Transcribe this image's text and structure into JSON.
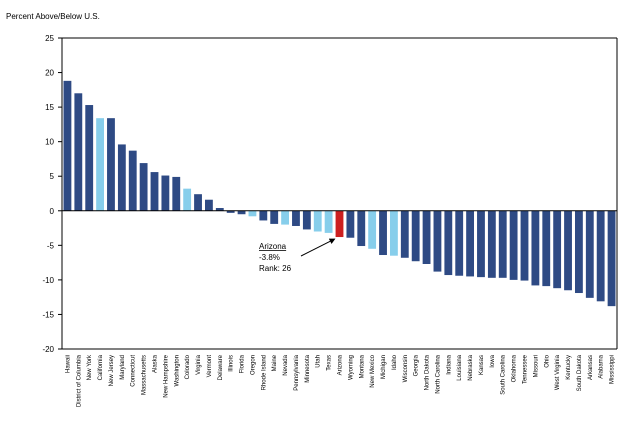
{
  "chart_data": {
    "type": "bar",
    "title": "",
    "ylabel": "Percent Above/Below U.S.",
    "xlabel": "",
    "ylim": [
      -20,
      25
    ],
    "yticks": [
      25,
      20,
      15,
      10,
      5,
      0,
      -5,
      -10,
      -15,
      -20
    ],
    "grid": false,
    "colors": {
      "default": "#2e4a84",
      "highlight": "#cc1f1f",
      "comparison": "#87ceeb"
    },
    "categories": [
      "Hawaii",
      "District of Columbia",
      "New York",
      "California",
      "New Jersey",
      "Maryland",
      "Connecticut",
      "Massachusetts",
      "Alaska",
      "New Hampshire",
      "Washington",
      "Colorado",
      "Virginia",
      "Vermont",
      "Delaware",
      "Illinois",
      "Florida",
      "Oregon",
      "Rhode Island",
      "Maine",
      "Nevada",
      "Pennsylvania",
      "Minnesota",
      "Utah",
      "Texas",
      "Arizona",
      "Wyoming",
      "Montana",
      "New Mexico",
      "Michigan",
      "Idaho",
      "Wisconsin",
      "Georgia",
      "North Dakota",
      "North Carolina",
      "Indiana",
      "Louisiana",
      "Nebraska",
      "Kansas",
      "Iowa",
      "South Carolina",
      "Oklahoma",
      "Tennessee",
      "Missouri",
      "Ohio",
      "West Virginia",
      "Kentucky",
      "South Dakota",
      "Arkansas",
      "Alabama",
      "Mississippi"
    ],
    "values": [
      18.8,
      17.0,
      15.3,
      13.4,
      13.4,
      9.6,
      8.7,
      6.9,
      5.6,
      5.1,
      4.9,
      3.2,
      2.4,
      1.6,
      0.4,
      -0.3,
      -0.5,
      -0.8,
      -1.4,
      -1.9,
      -2.0,
      -2.2,
      -2.7,
      -3.0,
      -3.2,
      -3.8,
      -3.9,
      -5.1,
      -5.5,
      -6.4,
      -6.5,
      -6.8,
      -7.3,
      -7.7,
      -8.8,
      -9.3,
      -9.4,
      -9.5,
      -9.6,
      -9.7,
      -9.7,
      -10.0,
      -10.1,
      -10.8,
      -10.9,
      -11.2,
      -11.5,
      -11.9,
      -12.6,
      -13.1,
      -13.8
    ],
    "highlight": [
      "Arizona"
    ],
    "comparison": [
      "California",
      "Colorado",
      "Oregon",
      "Nevada",
      "Utah",
      "Texas",
      "New Mexico",
      "Idaho"
    ],
    "annotation": {
      "target": "Arizona",
      "line1": "Arizona",
      "line2": "-3.8%",
      "line3": "Rank: 26"
    }
  }
}
